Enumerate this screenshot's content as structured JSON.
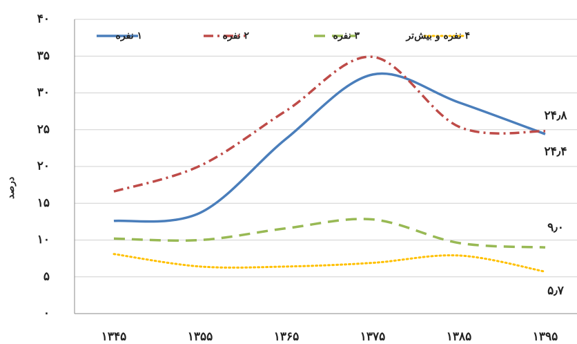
{
  "chart_data": {
    "type": "line",
    "y_label": "درصد",
    "categories": [
      "۱۳۴۵",
      "۱۳۵۵",
      "۱۳۶۵",
      "۱۳۷۵",
      "۱۳۸۵",
      "۱۳۹۵"
    ],
    "series": [
      {
        "name": "۱ نفره",
        "color": "#4a7ebb",
        "style": "solid",
        "values": [
          12.6,
          13.7,
          23.8,
          32.5,
          28.7,
          24.4
        ],
        "value_labels": [
          null,
          null,
          null,
          null,
          null,
          "۲۴٫۴"
        ]
      },
      {
        "name": "۲ نفره",
        "color": "#be4b48",
        "style": "dashdot",
        "values": [
          16.6,
          20.1,
          27.6,
          34.9,
          25.4,
          24.8
        ],
        "value_labels": [
          null,
          null,
          null,
          null,
          null,
          "۲۴٫۸"
        ]
      },
      {
        "name": "۳ نفره",
        "color": "#98b954",
        "style": "dashed",
        "values": [
          10.2,
          10.0,
          11.6,
          12.8,
          9.6,
          9.0
        ],
        "value_labels": [
          null,
          null,
          null,
          null,
          null,
          "۹٫۰"
        ]
      },
      {
        "name": "۴ نفره و بیش‌تر",
        "color": "#ffc000",
        "style": "dotted",
        "values": [
          8.1,
          6.4,
          6.4,
          6.9,
          7.9,
          5.7
        ],
        "value_labels": [
          null,
          null,
          null,
          null,
          null,
          "۵٫۷"
        ]
      }
    ],
    "ylim": [
      0,
      40
    ],
    "yticks": [
      {
        "value": 0,
        "label": "۰"
      },
      {
        "value": 5,
        "label": "۵"
      },
      {
        "value": 10,
        "label": "۱۰"
      },
      {
        "value": 15,
        "label": "۱۵"
      },
      {
        "value": 20,
        "label": "۲۰"
      },
      {
        "value": 25,
        "label": "۲۵"
      },
      {
        "value": 30,
        "label": "۳۰"
      },
      {
        "value": 35,
        "label": "۳۵"
      },
      {
        "value": 40,
        "label": "۴۰"
      }
    ],
    "grid": true,
    "legend": "top"
  }
}
